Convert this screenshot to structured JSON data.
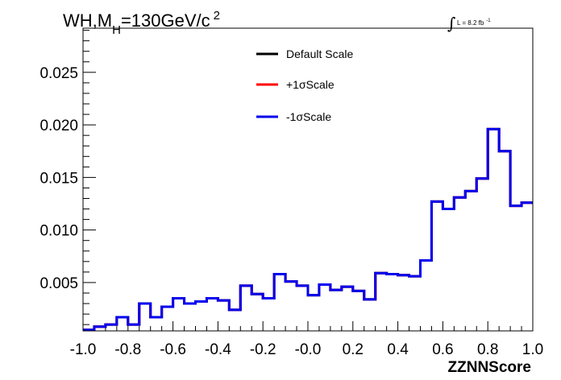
{
  "chart_data": {
    "type": "line",
    "title": {
      "prefix": "WH,M",
      "subscript": "H",
      "middle": "=130GeV/c",
      "superscript": "2"
    },
    "annotation": {
      "integral": "∫",
      "text": "L = 8.2 fb",
      "superscript": "-1"
    },
    "xlabel": "ZZNNScore",
    "ylabel": "",
    "xlim": [
      -1.0,
      1.0
    ],
    "ylim": [
      0.0004,
      0.0292
    ],
    "x_ticks": [
      "-1.0",
      "-0.8",
      "-0.6",
      "-0.4",
      "-0.2",
      "-0.0",
      "0.2",
      "0.4",
      "0.6",
      "0.8",
      "1.0"
    ],
    "y_ticks": [
      "0.005",
      "0.010",
      "0.015",
      "0.020",
      "0.025"
    ],
    "bin_edges": [
      -1.0,
      -0.95,
      -0.9,
      -0.85,
      -0.8,
      -0.75,
      -0.7,
      -0.65,
      -0.6,
      -0.55,
      -0.5,
      -0.45,
      -0.4,
      -0.35,
      -0.3,
      -0.25,
      -0.2,
      -0.15,
      -0.1,
      -0.05,
      0.0,
      0.05,
      0.1,
      0.15,
      0.2,
      0.25,
      0.3,
      0.35,
      0.4,
      0.45,
      0.5,
      0.55,
      0.6,
      0.65,
      0.7,
      0.75,
      0.8,
      0.85,
      0.9,
      0.95,
      1.0
    ],
    "legend_position": "top-center",
    "series": [
      {
        "name": "Default Scale",
        "color": "#000000",
        "values": [
          0.0005,
          0.0008,
          0.001,
          0.0017,
          0.001,
          0.003,
          0.0017,
          0.0027,
          0.0035,
          0.003,
          0.0032,
          0.0035,
          0.0033,
          0.0024,
          0.0047,
          0.0039,
          0.0035,
          0.0058,
          0.0051,
          0.0047,
          0.0038,
          0.0048,
          0.0043,
          0.0046,
          0.0042,
          0.0034,
          0.0059,
          0.0058,
          0.0057,
          0.0056,
          0.0071,
          0.0127,
          0.012,
          0.0131,
          0.0137,
          0.0149,
          0.0196,
          0.0175,
          0.0123,
          0.0126
        ]
      },
      {
        "name": "+1σScale",
        "color": "#ff0000",
        "values": [
          0.0005,
          0.0008,
          0.001,
          0.0017,
          0.001,
          0.003,
          0.0017,
          0.0027,
          0.0035,
          0.003,
          0.0032,
          0.0035,
          0.0033,
          0.0024,
          0.0047,
          0.0039,
          0.0035,
          0.0058,
          0.0051,
          0.0047,
          0.0038,
          0.0048,
          0.0043,
          0.0046,
          0.0042,
          0.0034,
          0.0059,
          0.0058,
          0.0057,
          0.0056,
          0.0071,
          0.0127,
          0.012,
          0.0131,
          0.0137,
          0.0149,
          0.0196,
          0.0175,
          0.0123,
          0.0126
        ]
      },
      {
        "name": "-1σScale",
        "color": "#0000ee",
        "values": [
          0.0005,
          0.0008,
          0.001,
          0.0017,
          0.001,
          0.003,
          0.0017,
          0.0027,
          0.0035,
          0.003,
          0.0032,
          0.0035,
          0.0033,
          0.0024,
          0.0047,
          0.0039,
          0.0035,
          0.0058,
          0.0051,
          0.0047,
          0.0038,
          0.0048,
          0.0043,
          0.0046,
          0.0042,
          0.0034,
          0.0059,
          0.0058,
          0.0057,
          0.0056,
          0.0071,
          0.0127,
          0.012,
          0.0131,
          0.0137,
          0.0149,
          0.0196,
          0.0175,
          0.0123,
          0.0126
        ]
      }
    ]
  }
}
